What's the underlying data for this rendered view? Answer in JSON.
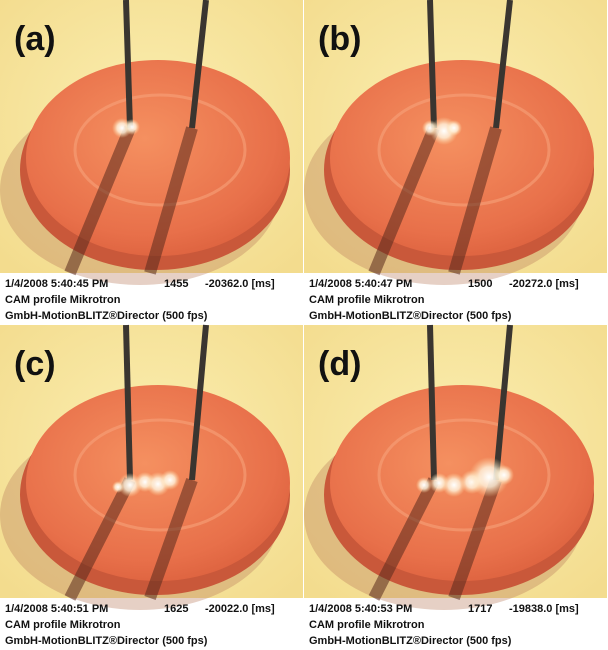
{
  "panels": [
    {
      "label": "(a)",
      "timestamp": "1/4/2008 5:40:45 PM",
      "frame": "1455",
      "time": "-20362.0 [ms]",
      "line2": "CAM profile Mikrotron",
      "line3": "GmbH-MotionBLITZ®Director (500 fps)"
    },
    {
      "label": "(b)",
      "timestamp": "1/4/2008 5:40:47 PM",
      "frame": "1500",
      "time": "-20272.0 [ms]",
      "line2": "CAM profile Mikrotron",
      "line3": "GmbH-MotionBLITZ®Director (500 fps)"
    },
    {
      "label": "(c)",
      "timestamp": "1/4/2008 5:40:51 PM",
      "frame": "1625",
      "time": "-20022.0 [ms]",
      "line2": "CAM profile Mikrotron",
      "line3": "GmbH-MotionBLITZ®Director (500 fps)"
    },
    {
      "label": "(d)",
      "timestamp": "1/4/2008 5:40:53 PM",
      "frame": "1717",
      "time": "-19838.0 [ms]",
      "line2": "CAM profile Mikrotron",
      "line3": "GmbH-MotionBLITZ®Director (500 fps)"
    }
  ]
}
